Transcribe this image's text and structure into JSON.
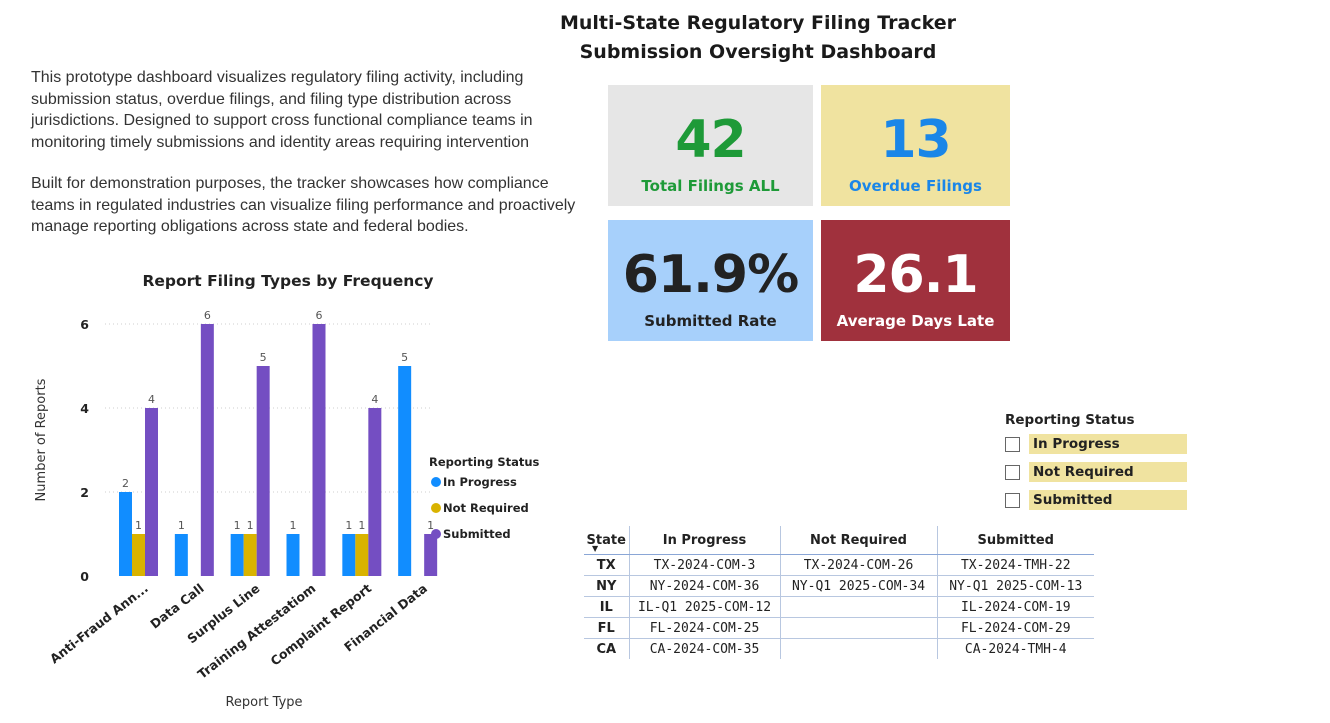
{
  "header": {
    "title_line1": "Multi-State Regulatory Filing Tracker",
    "title_line2": "Submission Oversight Dashboard"
  },
  "description": {
    "para1": "This prototype dashboard visualizes regulatory filing activity, including submission status, overdue filings, and filing type distribution across jurisdictions. Designed to support cross functional compliance teams in monitoring timely submissions and identity areas requiring intervention",
    "para2": "Built for demonstration purposes, the tracker  showcases how compliance teams in regulated industries can visualize filing performance and proactively manage reporting obligations across state and federal bodies."
  },
  "kpis": {
    "total": {
      "value": "42",
      "label": "Total Filings ALL",
      "bg": "#e6e6e6",
      "color": "#1e9a38"
    },
    "overdue": {
      "value": "13",
      "label": "Overdue Filings",
      "bg": "#f0e3a0",
      "color": "#1a86e8"
    },
    "submitted_rate": {
      "value": "61.9%",
      "label": "Submitted Rate",
      "bg": "#a7d0fb",
      "color": "#222222"
    },
    "avg_days_late": {
      "value": "26.1",
      "label": "Average Days Late",
      "bg": "#a0313d",
      "color": "#ffffff"
    }
  },
  "chart_data": {
    "type": "bar",
    "title": "Report Filing Types by Frequency",
    "xlabel": "Report Type",
    "ylabel": "Number of Reports",
    "ylim": [
      0,
      6
    ],
    "yticks": [
      0,
      2,
      4,
      6
    ],
    "categories": [
      "Anti-Fraud Ann...",
      "Data Call",
      "Surplus Line",
      "Training Attestatiom",
      "Complaint Report",
      "Financial Data"
    ],
    "series": [
      {
        "name": "In Progress",
        "color": "#118dff",
        "values": [
          2,
          1,
          1,
          1,
          1,
          5
        ]
      },
      {
        "name": "Not Required",
        "color": "#d9b300",
        "values": [
          1,
          null,
          1,
          null,
          1,
          null
        ]
      },
      {
        "name": "Submitted",
        "color": "#744ec2",
        "values": [
          4,
          6,
          5,
          6,
          4,
          1
        ]
      }
    ],
    "legend_title": "Reporting Status",
    "legend_position": "right",
    "grid": true
  },
  "slicer": {
    "title": "Reporting Status",
    "items": [
      "In Progress",
      "Not Required",
      "Submitted"
    ]
  },
  "matrix": {
    "headers": [
      "State",
      "In Progress",
      "Not Required",
      "Submitted"
    ],
    "rows": [
      {
        "state": "TX",
        "in_progress": "TX-2024-COM-3",
        "not_required": "TX-2024-COM-26",
        "submitted": "TX-2024-TMH-22"
      },
      {
        "state": "NY",
        "in_progress": "NY-2024-COM-36",
        "not_required": "NY-Q1 2025-COM-34",
        "submitted": "NY-Q1 2025-COM-13"
      },
      {
        "state": "IL",
        "in_progress": "IL-Q1 2025-COM-12",
        "not_required": "",
        "submitted": "IL-2024-COM-19"
      },
      {
        "state": "FL",
        "in_progress": "FL-2024-COM-25",
        "not_required": "",
        "submitted": "FL-2024-COM-29"
      },
      {
        "state": "CA",
        "in_progress": "CA-2024-COM-35",
        "not_required": "",
        "submitted": "CA-2024-TMH-4"
      }
    ]
  }
}
